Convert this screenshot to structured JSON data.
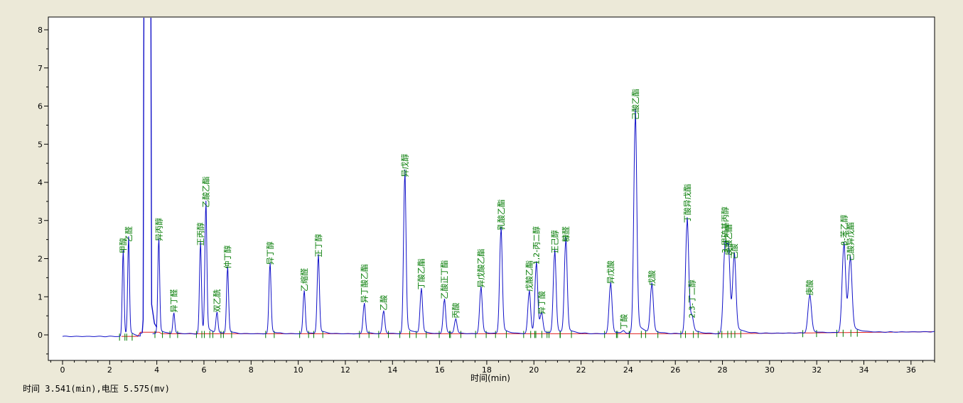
{
  "status": {
    "label": "时间 3.541(min),电压 5.575(mv)"
  },
  "chart_data": {
    "type": "line",
    "title": "",
    "xlabel": "时间(min)",
    "ylabel": "",
    "xlim": [
      -0.5,
      37.0
    ],
    "ylim": [
      -0.6,
      8.4
    ],
    "xticks": [
      0,
      2,
      4,
      6,
      8,
      10,
      12,
      14,
      16,
      18,
      20,
      22,
      24,
      26,
      28,
      30,
      32,
      34,
      36
    ],
    "yticks": [
      0,
      1,
      2,
      3,
      4,
      5,
      6,
      7,
      8
    ],
    "grid": false,
    "colors": {
      "signal": "#1010c8",
      "baseline": "#e02020",
      "label": "#007a00",
      "marker": "#007a00"
    },
    "solvent_peak": {
      "x": 3.55,
      "y": 8.4
    },
    "peaks": [
      {
        "x": 2.57,
        "y": 2.1,
        "label": "甲醇"
      },
      {
        "x": 2.8,
        "y": 2.4,
        "label": "乙醛"
      },
      {
        "x": 4.08,
        "y": 2.42,
        "label": "异丙醇"
      },
      {
        "x": 4.72,
        "y": 0.55,
        "label": "异丁醛"
      },
      {
        "x": 5.85,
        "y": 2.3,
        "label": "正丙醇"
      },
      {
        "x": 6.08,
        "y": 3.3,
        "label": "乙酸乙酯"
      },
      {
        "x": 6.55,
        "y": 0.55,
        "label": "双乙酰"
      },
      {
        "x": 7.0,
        "y": 1.7,
        "label": "仲丁醇"
      },
      {
        "x": 8.8,
        "y": 1.8,
        "label": "异丁醇"
      },
      {
        "x": 10.25,
        "y": 1.1,
        "label": "乙缩醛"
      },
      {
        "x": 10.85,
        "y": 2.0,
        "label": "正丁醇"
      },
      {
        "x": 12.8,
        "y": 0.8,
        "label": "异丁酸乙酯"
      },
      {
        "x": 13.62,
        "y": 0.6,
        "label": "乙酸"
      },
      {
        "x": 14.52,
        "y": 4.1,
        "label": "异戊醇"
      },
      {
        "x": 15.22,
        "y": 1.15,
        "label": "丁酸乙酯"
      },
      {
        "x": 16.2,
        "y": 0.9,
        "label": "乙酸正丁酯"
      },
      {
        "x": 16.68,
        "y": 0.4,
        "label": "丙酸"
      },
      {
        "x": 17.75,
        "y": 1.2,
        "label": "异戊酸乙酯"
      },
      {
        "x": 18.6,
        "y": 2.7,
        "label": "乳酸乙酯"
      },
      {
        "x": 19.8,
        "y": 1.1,
        "label": "戊酸乙酯"
      },
      {
        "x": 20.1,
        "y": 1.8,
        "label": "1,2-丙二醇"
      },
      {
        "x": 20.32,
        "y": 0.5,
        "label": "异丁酸"
      },
      {
        "x": 20.88,
        "y": 2.1,
        "label": "正己醇"
      },
      {
        "x": 21.35,
        "y": 2.4,
        "label": "糠醛"
      },
      {
        "x": 23.25,
        "y": 1.3,
        "label": "异戊酸"
      },
      {
        "x": 23.8,
        "y": 0.1,
        "label": "丁酸"
      },
      {
        "x": 24.3,
        "y": 5.6,
        "label": "己酸乙酯"
      },
      {
        "x": 25.0,
        "y": 1.25,
        "label": "戊酸"
      },
      {
        "x": 26.5,
        "y": 2.9,
        "label": "丁酸异戊酯"
      },
      {
        "x": 26.7,
        "y": 0.4,
        "label": "2,3-丁二醇"
      },
      {
        "x": 28.1,
        "y": 2.1,
        "label": "3-甲硫基丙醇"
      },
      {
        "x": 28.25,
        "y": 2.05,
        "label": "庚酸乙酯"
      },
      {
        "x": 28.5,
        "y": 1.95,
        "label": "己酸"
      },
      {
        "x": 31.7,
        "y": 1.0,
        "label": "庚酸"
      },
      {
        "x": 33.15,
        "y": 2.3,
        "label": "β-苯乙醇"
      },
      {
        "x": 33.42,
        "y": 1.9,
        "label": "己酸异戊酯"
      }
    ]
  }
}
